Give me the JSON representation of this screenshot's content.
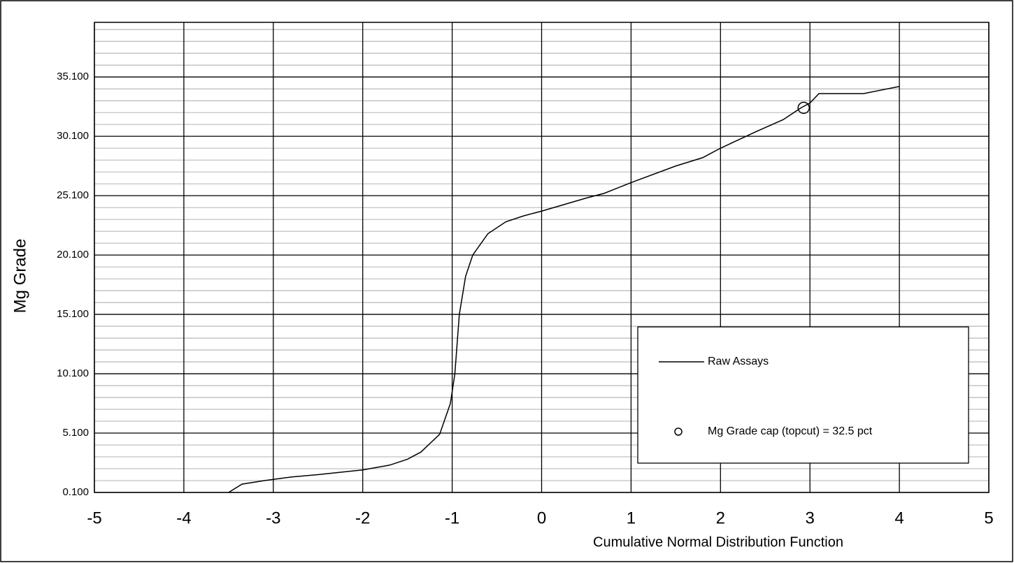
{
  "chart_data": {
    "type": "line",
    "xlabel": "Cumulative Normal Distribution Function",
    "ylabel": "Mg Grade",
    "xlim": [
      -5,
      5
    ],
    "xticks": [
      -5,
      -4,
      -3,
      -2,
      -1,
      0,
      1,
      2,
      3,
      4,
      5
    ],
    "ylim": [
      0.1,
      39.7
    ],
    "yticks": [
      {
        "value": 0.1,
        "label": "0.100"
      },
      {
        "value": 5.1,
        "label": "5.100"
      },
      {
        "value": 10.1,
        "label": "10.100"
      },
      {
        "value": 15.1,
        "label": "15.100"
      },
      {
        "value": 20.1,
        "label": "20.100"
      },
      {
        "value": 25.1,
        "label": "25.100"
      },
      {
        "value": 30.1,
        "label": "30.100"
      },
      {
        "value": 35.1,
        "label": "35.100"
      }
    ],
    "yminor": [
      1.1,
      2.1,
      3.1,
      4.1,
      6.1,
      7.1,
      8.1,
      9.1,
      11.1,
      12.1,
      13.1,
      14.1,
      16.1,
      17.1,
      18.1,
      19.1,
      21.1,
      22.1,
      23.1,
      24.1,
      26.1,
      27.1,
      28.1,
      29.1,
      31.1,
      32.1,
      33.1,
      34.1,
      36.1,
      37.1,
      38.1,
      39.1
    ],
    "grid": true,
    "legend": "lower right",
    "series": [
      {
        "name": "Raw Assays",
        "color": "#000000",
        "marker": "none",
        "x": [
          -3.5,
          -3.35,
          -3.1,
          -2.8,
          -2.5,
          -2.0,
          -1.7,
          -1.5,
          -1.35,
          -1.14,
          -1.02,
          -0.97,
          -0.92,
          -0.85,
          -0.77,
          -0.6,
          -0.4,
          -0.2,
          0,
          0.5,
          0.7,
          1.0,
          1.5,
          1.8,
          2.0,
          2.4,
          2.7,
          2.9,
          3.0,
          3.1,
          3.6,
          4.0
        ],
        "values": [
          0.1,
          0.8,
          1.1,
          1.4,
          1.6,
          2.0,
          2.4,
          2.9,
          3.5,
          5.0,
          7.6,
          10.1,
          15.1,
          18.3,
          20.1,
          21.9,
          22.9,
          23.4,
          23.8,
          24.9,
          25.3,
          26.2,
          27.6,
          28.3,
          29.1,
          30.5,
          31.5,
          32.5,
          32.9,
          33.7,
          33.7,
          34.3
        ]
      },
      {
        "name": "Mg Grade cap (topcut) = 32.5 pct",
        "color": "#000000",
        "marker": "circle",
        "x": [
          2.93
        ],
        "values": [
          32.5
        ]
      }
    ]
  }
}
